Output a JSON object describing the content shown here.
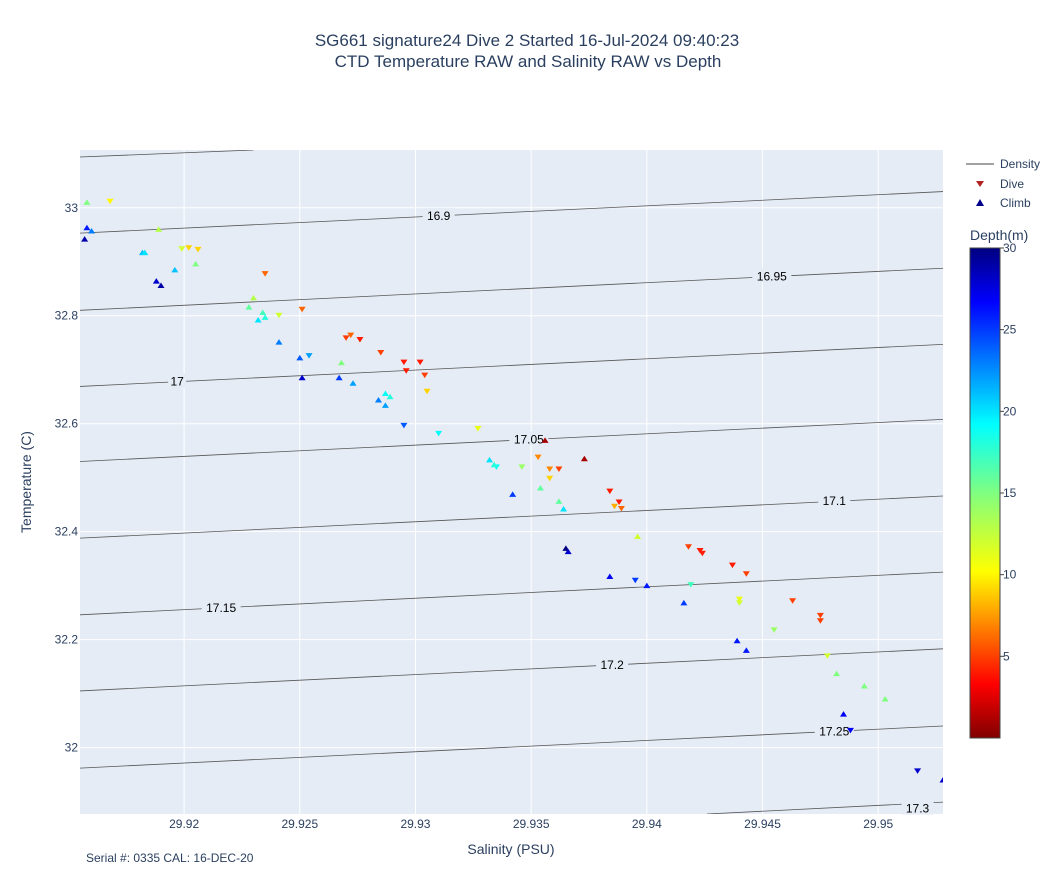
{
  "chart_data": {
    "type": "scatter",
    "title": "SG661 signature24 Dive 2 Started 16-Jul-2024 09:40:23",
    "subtitle": "CTD Temperature RAW and Salinity RAW vs Depth",
    "xlabel": "Salinity (PSU)",
    "ylabel": "Temperature (C)",
    "xlim": [
      29.9155,
      29.9528
    ],
    "ylim": [
      31.877,
      33.107
    ],
    "x_ticks": [
      29.92,
      29.925,
      29.93,
      29.935,
      29.94,
      29.945,
      29.95
    ],
    "x_tick_labels": [
      "29.92",
      "29.925",
      "29.93",
      "29.935",
      "29.94",
      "29.945",
      "29.95"
    ],
    "y_ticks": [
      32.0,
      32.2,
      32.4,
      32.6,
      32.8,
      33.0
    ],
    "y_tick_labels": [
      "32",
      "32.2",
      "32.4",
      "32.6",
      "32.8",
      "33"
    ],
    "grid": true,
    "footer": "Serial #: 0335  CAL: 16-DEC-20",
    "legend": {
      "position": "right",
      "entries": [
        {
          "label": "Density",
          "symbol": "line"
        },
        {
          "label": "Dive",
          "symbol": "triangle-down",
          "color": "#b22222"
        },
        {
          "label": "Climb",
          "symbol": "triangle-up",
          "color": "#00008b"
        }
      ]
    },
    "colorbar": {
      "title": "Depth(m)",
      "min": 0,
      "max": 30,
      "ticks": [
        5,
        10,
        15,
        20,
        25,
        30
      ],
      "tick_labels": [
        "5",
        "10",
        "15",
        "20",
        "25",
        "30"
      ],
      "colorscale": "Jet (reversed: dark red = shallow, dark blue = deep)"
    },
    "density_contours": [
      {
        "label": "16.9",
        "x1": 29.9155,
        "y1": 32.953,
        "x2": 29.9528,
        "y2": 33.03,
        "label_x": 29.931,
        "label_y": 32.985
      },
      {
        "label": "16.95",
        "x1": 29.9155,
        "y1": 32.81,
        "x2": 29.9528,
        "y2": 32.888,
        "label_x": 29.9454,
        "label_y": 32.873
      },
      {
        "label": "17",
        "x1": 29.9155,
        "y1": 32.669,
        "x2": 29.9528,
        "y2": 32.747,
        "label_x": 29.9197,
        "label_y": 32.678
      },
      {
        "label": "17.05",
        "x1": 29.9155,
        "y1": 32.53,
        "x2": 29.9528,
        "y2": 32.608,
        "label_x": 29.9349,
        "label_y": 32.571
      },
      {
        "label": "17.1",
        "x1": 29.9155,
        "y1": 32.388,
        "x2": 29.9528,
        "y2": 32.466,
        "label_x": 29.9481,
        "label_y": 32.457
      },
      {
        "label": "17.15",
        "x1": 29.9155,
        "y1": 32.246,
        "x2": 29.9528,
        "y2": 32.325,
        "label_x": 29.9216,
        "label_y": 32.259
      },
      {
        "label": "17.2",
        "x1": 29.9155,
        "y1": 32.105,
        "x2": 29.9528,
        "y2": 32.183,
        "label_x": 29.9385,
        "label_y": 32.153
      },
      {
        "label": "17.25",
        "x1": 29.9155,
        "y1": 31.962,
        "x2": 29.9528,
        "y2": 32.04,
        "label_x": 29.9481,
        "label_y": 32.03
      },
      {
        "label": "17.3",
        "x1": 29.9426,
        "y1": 31.877,
        "x2": 29.9528,
        "y2": 31.899,
        "label_x": 29.9517,
        "label_y": 31.887
      },
      {
        "label": "",
        "x1": 29.9155,
        "y1": 33.094,
        "x2": 29.923,
        "y2": 33.107,
        "label_x": null,
        "label_y": null
      }
    ],
    "series": [
      {
        "name": "Dive",
        "symbol": "triangle-down",
        "points": [
          {
            "x": 29.9168,
            "y": 33.012,
            "depth": 10
          },
          {
            "x": 29.9199,
            "y": 32.924,
            "depth": 12
          },
          {
            "x": 29.9202,
            "y": 32.926,
            "depth": 9
          },
          {
            "x": 29.9206,
            "y": 32.923,
            "depth": 9
          },
          {
            "x": 29.9235,
            "y": 32.878,
            "depth": 6
          },
          {
            "x": 29.9241,
            "y": 32.801,
            "depth": 12
          },
          {
            "x": 29.9251,
            "y": 32.812,
            "depth": 6
          },
          {
            "x": 29.9254,
            "y": 32.726,
            "depth": 22
          },
          {
            "x": 29.927,
            "y": 32.759,
            "depth": 5
          },
          {
            "x": 29.9272,
            "y": 32.764,
            "depth": 6
          },
          {
            "x": 29.9276,
            "y": 32.756,
            "depth": 4
          },
          {
            "x": 29.9285,
            "y": 32.732,
            "depth": 5
          },
          {
            "x": 29.9295,
            "y": 32.714,
            "depth": 4
          },
          {
            "x": 29.9295,
            "y": 32.597,
            "depth": 24
          },
          {
            "x": 29.9296,
            "y": 32.698,
            "depth": 4
          },
          {
            "x": 29.9302,
            "y": 32.714,
            "depth": 4
          },
          {
            "x": 29.9304,
            "y": 32.69,
            "depth": 5
          },
          {
            "x": 29.9305,
            "y": 32.66,
            "depth": 9
          },
          {
            "x": 29.931,
            "y": 32.582,
            "depth": 19
          },
          {
            "x": 29.9327,
            "y": 32.591,
            "depth": 11
          },
          {
            "x": 29.9335,
            "y": 32.52,
            "depth": 19
          },
          {
            "x": 29.9346,
            "y": 32.52,
            "depth": 14
          },
          {
            "x": 29.9353,
            "y": 32.538,
            "depth": 7
          },
          {
            "x": 29.9358,
            "y": 32.516,
            "depth": 7
          },
          {
            "x": 29.9358,
            "y": 32.499,
            "depth": 9
          },
          {
            "x": 29.9362,
            "y": 32.516,
            "depth": 5
          },
          {
            "x": 29.9384,
            "y": 32.475,
            "depth": 4
          },
          {
            "x": 29.9386,
            "y": 32.447,
            "depth": 8
          },
          {
            "x": 29.9388,
            "y": 32.455,
            "depth": 4
          },
          {
            "x": 29.9389,
            "y": 32.443,
            "depth": 6
          },
          {
            "x": 29.9395,
            "y": 32.31,
            "depth": 25
          },
          {
            "x": 29.9418,
            "y": 32.372,
            "depth": 5
          },
          {
            "x": 29.9419,
            "y": 32.302,
            "depth": 17
          },
          {
            "x": 29.9423,
            "y": 32.365,
            "depth": 4
          },
          {
            "x": 29.9424,
            "y": 32.36,
            "depth": 4
          },
          {
            "x": 29.9437,
            "y": 32.338,
            "depth": 4
          },
          {
            "x": 29.944,
            "y": 32.268,
            "depth": 12
          },
          {
            "x": 29.944,
            "y": 32.275,
            "depth": 11
          },
          {
            "x": 29.9443,
            "y": 32.322,
            "depth": 5
          },
          {
            "x": 29.9455,
            "y": 32.218,
            "depth": 14
          },
          {
            "x": 29.9463,
            "y": 32.272,
            "depth": 5
          },
          {
            "x": 29.9475,
            "y": 32.245,
            "depth": 5
          },
          {
            "x": 29.9475,
            "y": 32.235,
            "depth": 5
          },
          {
            "x": 29.9478,
            "y": 32.17,
            "depth": 12
          },
          {
            "x": 29.9488,
            "y": 32.032,
            "depth": 27
          },
          {
            "x": 29.9517,
            "y": 31.957,
            "depth": 28
          }
        ]
      },
      {
        "name": "Climb",
        "symbol": "triangle-up",
        "points": [
          {
            "x": 29.9158,
            "y": 33.01,
            "depth": 15
          },
          {
            "x": 29.9158,
            "y": 32.963,
            "depth": 26
          },
          {
            "x": 29.9157,
            "y": 32.942,
            "depth": 29
          },
          {
            "x": 29.916,
            "y": 32.957,
            "depth": 23
          },
          {
            "x": 29.9189,
            "y": 32.96,
            "depth": 13
          },
          {
            "x": 29.9182,
            "y": 32.917,
            "depth": 21
          },
          {
            "x": 29.9183,
            "y": 32.917,
            "depth": 20
          },
          {
            "x": 29.9188,
            "y": 32.864,
            "depth": 28
          },
          {
            "x": 29.919,
            "y": 32.856,
            "depth": 29
          },
          {
            "x": 29.9196,
            "y": 32.885,
            "depth": 21
          },
          {
            "x": 29.9205,
            "y": 32.896,
            "depth": 15
          },
          {
            "x": 29.923,
            "y": 32.833,
            "depth": 13
          },
          {
            "x": 29.9228,
            "y": 32.816,
            "depth": 16
          },
          {
            "x": 29.9234,
            "y": 32.806,
            "depth": 17
          },
          {
            "x": 29.9232,
            "y": 32.792,
            "depth": 20
          },
          {
            "x": 29.9235,
            "y": 32.797,
            "depth": 18
          },
          {
            "x": 29.9241,
            "y": 32.751,
            "depth": 23
          },
          {
            "x": 29.925,
            "y": 32.722,
            "depth": 24
          },
          {
            "x": 29.9251,
            "y": 32.685,
            "depth": 28
          },
          {
            "x": 29.9267,
            "y": 32.685,
            "depth": 25
          },
          {
            "x": 29.9268,
            "y": 32.713,
            "depth": 15
          },
          {
            "x": 29.9273,
            "y": 32.675,
            "depth": 22
          },
          {
            "x": 29.9284,
            "y": 32.644,
            "depth": 23
          },
          {
            "x": 29.9287,
            "y": 32.634,
            "depth": 22
          },
          {
            "x": 29.9287,
            "y": 32.656,
            "depth": 19
          },
          {
            "x": 29.9289,
            "y": 32.65,
            "depth": 18
          },
          {
            "x": 29.9332,
            "y": 32.533,
            "depth": 20
          },
          {
            "x": 29.9334,
            "y": 32.524,
            "depth": 18
          },
          {
            "x": 29.9342,
            "y": 32.469,
            "depth": 25
          },
          {
            "x": 29.9354,
            "y": 32.481,
            "depth": 16
          },
          {
            "x": 29.9356,
            "y": 32.569,
            "depth": 1
          },
          {
            "x": 29.9362,
            "y": 32.456,
            "depth": 16
          },
          {
            "x": 29.9364,
            "y": 32.442,
            "depth": 20
          },
          {
            "x": 29.9365,
            "y": 32.369,
            "depth": 30
          },
          {
            "x": 29.9366,
            "y": 32.363,
            "depth": 28
          },
          {
            "x": 29.9373,
            "y": 32.535,
            "depth": 1
          },
          {
            "x": 29.9384,
            "y": 32.317,
            "depth": 27
          },
          {
            "x": 29.9396,
            "y": 32.391,
            "depth": 12
          },
          {
            "x": 29.94,
            "y": 32.3,
            "depth": 26
          },
          {
            "x": 29.9416,
            "y": 32.268,
            "depth": 25
          },
          {
            "x": 29.9439,
            "y": 32.198,
            "depth": 26
          },
          {
            "x": 29.9443,
            "y": 32.18,
            "depth": 26
          },
          {
            "x": 29.9482,
            "y": 32.137,
            "depth": 15
          },
          {
            "x": 29.9485,
            "y": 32.062,
            "depth": 27
          },
          {
            "x": 29.9494,
            "y": 32.114,
            "depth": 15
          },
          {
            "x": 29.9503,
            "y": 32.09,
            "depth": 15
          },
          {
            "x": 29.9528,
            "y": 31.94,
            "depth": 28
          }
        ]
      }
    ]
  }
}
